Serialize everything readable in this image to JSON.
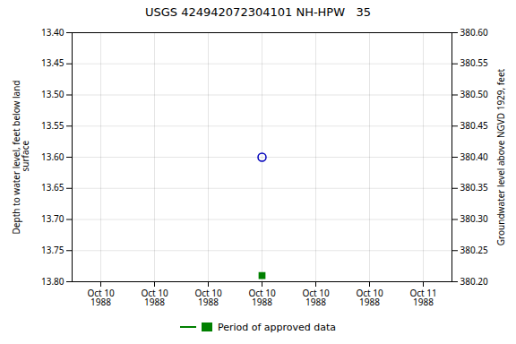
{
  "chart_data": {
    "type": "scatter",
    "title": "USGS 424942072304101 NH-HPW   35",
    "categories": [
      "Oct 10\n1988",
      "Oct 10\n1988",
      "Oct 10\n1988",
      "Oct 10\n1988",
      "Oct 10\n1988",
      "Oct 10\n1988",
      "Oct 11\n1988"
    ],
    "ylabel": "Depth to water level, feet below land\n surface",
    "y2label": "Groundwater level above NGVD 1929, feet",
    "ylim": [
      13.8,
      13.4
    ],
    "yticks": [
      {
        "value": 13.4,
        "label": "13.40"
      },
      13.45,
      {
        "value": 13.5,
        "label": "13.50"
      },
      13.55,
      {
        "value": 13.6,
        "label": "13.60"
      },
      13.65,
      {
        "value": 13.7,
        "label": "13.70"
      },
      13.75,
      {
        "value": 13.8,
        "label": "13.80"
      }
    ],
    "y2lim": [
      380.2,
      380.6
    ],
    "y2ticks": [
      {
        "value": 380.6,
        "label": "380.60"
      },
      380.55,
      {
        "value": 380.5,
        "label": "380.50"
      },
      380.45,
      {
        "value": 380.4,
        "label": "380.40"
      },
      380.35,
      {
        "value": 380.3,
        "label": "380.30"
      },
      380.25,
      {
        "value": 380.2,
        "label": "380.20"
      }
    ],
    "series": [
      {
        "values": [
          null,
          null,
          null,
          13.6,
          null,
          null,
          null
        ],
        "color": "#0000bb",
        "marker": "circle"
      },
      {
        "name": "Period of approved data",
        "values": [
          null,
          null,
          null,
          13.79,
          null,
          null,
          null
        ],
        "color": "#008000",
        "marker": "square"
      }
    ],
    "grid": true,
    "legend": "bottom"
  }
}
